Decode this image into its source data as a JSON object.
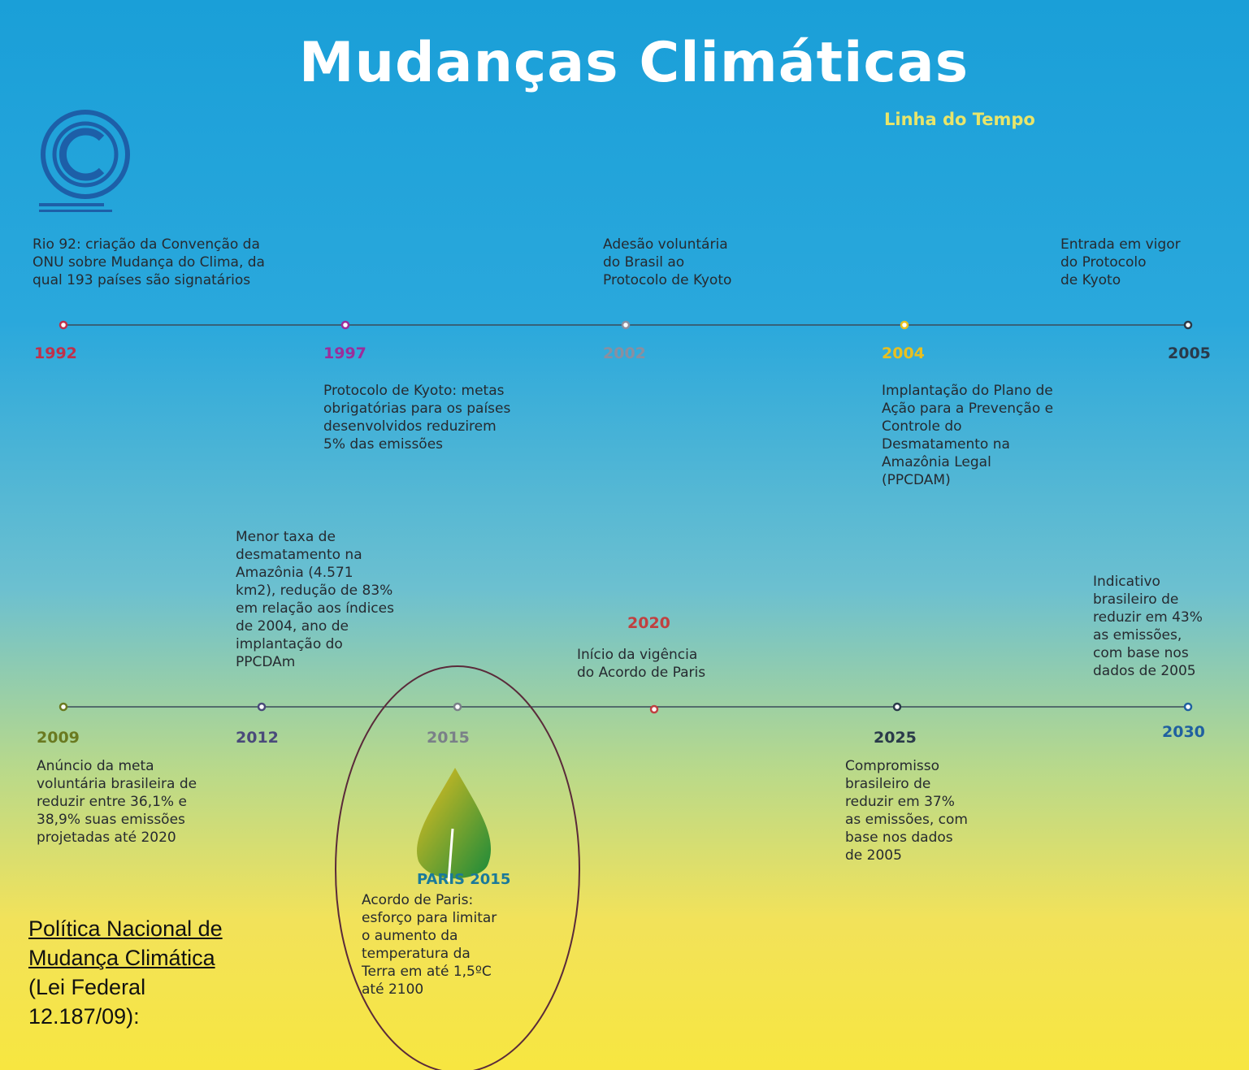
{
  "header": {
    "title": "Mudanças Climáticas",
    "subtitle": "Linha do Tempo"
  },
  "rows": [
    [
      {
        "year": "1992",
        "color": "#c0304a",
        "lines": [
          "Rio 92: criação da Convenção da",
          "ONU sobre Mudança do Clima, da",
          "qual 193 países são signatários"
        ]
      },
      {
        "year": "1997",
        "color": "#9b2d9b",
        "lines": [
          "Protocolo de Kyoto: metas",
          "obrigatórias para os países",
          "desenvolvidos reduzirem",
          "5% das emissões"
        ]
      },
      {
        "year": "2002",
        "color": "#8a8fa0",
        "lines": [
          "Adesão voluntária",
          "do Brasil ao",
          "Protocolo de Kyoto"
        ]
      },
      {
        "year": "2004",
        "color": "#e8c020",
        "lines": [
          "Implantação do Plano de",
          "Ação para a Prevenção e",
          "Controle do",
          "Desmatamento na",
          "Amazônia Legal",
          "(PPCDAM)"
        ]
      },
      {
        "year": "2005",
        "color": "#2a3a4a",
        "lines": [
          "Entrada em vigor",
          "do Protocolo",
          "de Kyoto"
        ]
      }
    ],
    [
      {
        "year": "2009",
        "color": "#6a7a20",
        "lines": [
          "Anúncio da meta",
          "voluntária brasileira de",
          "reduzir entre 36,1% e",
          "38,9% suas emissões",
          "projetadas até 2020"
        ]
      },
      {
        "year": "2012",
        "color": "#4a4a7a",
        "lines": [
          "Menor taxa de",
          "desmatamento na",
          "Amazônia (4.571",
          "km2), redução de 83%",
          "em relação aos índices",
          "de 2004, ano de",
          "implantação do",
          "PPCDAm"
        ]
      },
      {
        "year": "2015",
        "color": "#7a8088",
        "lines": [
          "Acordo de Paris:",
          "esforço para limitar",
          "o aumento da",
          "temperatura da",
          "Terra em até 1,5ºC",
          "até 2100"
        ]
      },
      {
        "year": "2020",
        "color": "#c04040",
        "lines": [
          "Início da vigência",
          "do Acordo de Paris"
        ]
      },
      {
        "year": "2025",
        "color": "#2a3a4a",
        "lines": [
          "Compromisso",
          "brasileiro de",
          "reduzir em 37%",
          "as emissões, com",
          "base nos dados",
          "de 2005"
        ]
      },
      {
        "year": "2030",
        "color": "#2060a0",
        "lines": [
          "Indicativo",
          "brasileiro de",
          "reduzir em 43%",
          "as emissões,",
          "com base nos",
          "dados de 2005"
        ]
      }
    ]
  ],
  "logo": {
    "label": "PARIS 2015"
  },
  "note": {
    "lines": [
      "Política Nacional de",
      "Mudança Climática",
      "(Lei Federal",
      "12.187/09):"
    ]
  }
}
